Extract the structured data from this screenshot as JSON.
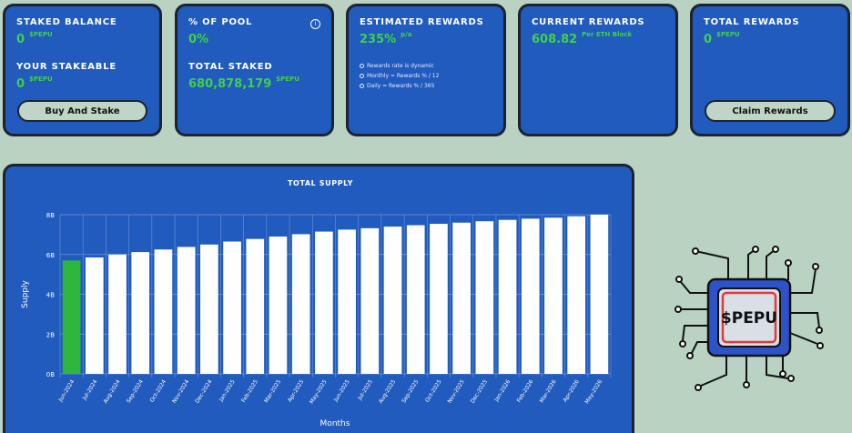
{
  "cards": {
    "staked_balance": {
      "label": "STAKED BALANCE",
      "value": "0",
      "unit": "$PEPU"
    },
    "your_stakeable": {
      "label": "YOUR STAKEABLE",
      "value": "0",
      "unit": "$PEPU"
    },
    "buy_button": "Buy And Stake",
    "pool_label": "% OF POOL",
    "pool_value": "0%",
    "info_icon": "i",
    "total_staked": {
      "label": "TOTAL STAKED",
      "value": "680,878,179",
      "unit": "$PEPU"
    },
    "estimated": {
      "label": "ESTIMATED REWARDS",
      "value": "235%",
      "unit": "p/a",
      "notes": [
        "Rewards rate is dynamic",
        "Monthly = Rewards % / 12",
        "Daily = Rewards % / 365"
      ]
    },
    "current": {
      "label": "CURRENT REWARDS",
      "value": "608.82",
      "unit": "Per ETH Block"
    },
    "total_rewards": {
      "label": "TOTAL REWARDS",
      "value": "0",
      "unit": "$PEPU"
    },
    "claim_button": "Claim Rewards"
  },
  "logo": {
    "text": "$PEPU",
    "icon": "chip-icon"
  },
  "chart_data": {
    "type": "bar",
    "title": "TOTAL SUPPLY",
    "xlabel": "Months",
    "ylabel": "Supply",
    "yticks": [
      "0B",
      "2B",
      "4B",
      "6B",
      "8B"
    ],
    "ylim": [
      0,
      8
    ],
    "categories": [
      "Jun-2024",
      "Jul-2024",
      "Aug-2024",
      "Sep-2024",
      "Oct-2024",
      "Nov-2024",
      "Dec-2024",
      "Jan-2025",
      "Feb-2025",
      "Mar-2025",
      "Apr-2025",
      "May-2025",
      "Jun-2025",
      "Jul-2025",
      "Aug-2025",
      "Sep-2025",
      "Oct-2025",
      "Nov-2025",
      "Dec-2025",
      "Jan-2026",
      "Feb-2026",
      "Mar-2026",
      "Apr-2026",
      "May-2026"
    ],
    "values": [
      5.7,
      5.85,
      6.0,
      6.12,
      6.25,
      6.38,
      6.5,
      6.65,
      6.78,
      6.9,
      7.02,
      7.15,
      7.25,
      7.32,
      7.4,
      7.47,
      7.54,
      7.6,
      7.67,
      7.74,
      7.8,
      7.85,
      7.92,
      8.0
    ],
    "colors": {
      "highlight": "#2db83d",
      "bar": "#ffffff"
    },
    "grid": true
  }
}
